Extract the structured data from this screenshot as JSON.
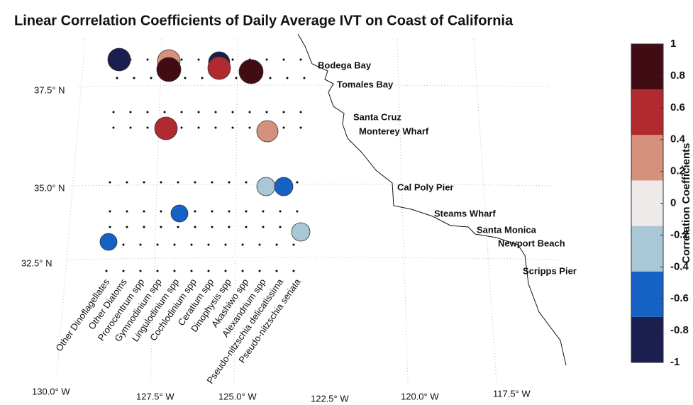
{
  "title": "Linear Correlation Coefficients of Daily Average IVT on Coast of California",
  "stations": [
    "Bodega Bay",
    "Tomales Bay",
    "Santa Cruz",
    "Monterey Wharf",
    "Cal Poly Pier",
    "Steams Wharf",
    "Santa Monica",
    "Newport Beach",
    "Scripps Pier"
  ],
  "species": [
    "Other Dinoflagellates",
    "Other Diatoms",
    "Prorocentrum spp",
    "Gymnodinium spp",
    "Lingulodinium spp",
    "Cochlodinium spp",
    "Ceratium spp",
    "Dinophysis spp",
    "Akashiwo spp",
    "Alexandrium spp",
    "Pseudo-nitzschia delicatissima",
    "Pseudo-nitzschia seriata"
  ],
  "lat_ticks": [
    {
      "value": 37.5,
      "label": "37.5° N"
    },
    {
      "value": 35.0,
      "label": "35.0° N"
    },
    {
      "value": 32.5,
      "label": "32.5° N"
    }
  ],
  "lon_ticks": [
    {
      "value": -130.0,
      "label": "130.0° W"
    },
    {
      "value": -127.5,
      "label": "127.5° W"
    },
    {
      "value": -125.0,
      "label": "125.0° W"
    },
    {
      "value": -122.5,
      "label": "122.5° W"
    },
    {
      "value": -120.0,
      "label": "120.0° W"
    },
    {
      "value": -117.5,
      "label": "117.5° W"
    }
  ],
  "circles": [
    -0.9,
    0.35,
    0.8,
    -0.85,
    0.6,
    0.85,
    0.6,
    0.3,
    -0.2,
    -0.6,
    -0.55,
    -0.2,
    -0.45
  ],
  "colorbar": {
    "label": "Correlation Coefficients",
    "lim": [
      -1,
      1
    ],
    "ticks": [
      1,
      0.8,
      0.6,
      0.4,
      0.2,
      0,
      -0.2,
      -0.4,
      -0.6,
      -0.8,
      -1
    ],
    "colors": [
      "#1b1f4f",
      "#1562c4",
      "#a9c7d6",
      "#eeeaea",
      "#d6917c",
      "#b12a2f",
      "#420c15"
    ]
  }
}
